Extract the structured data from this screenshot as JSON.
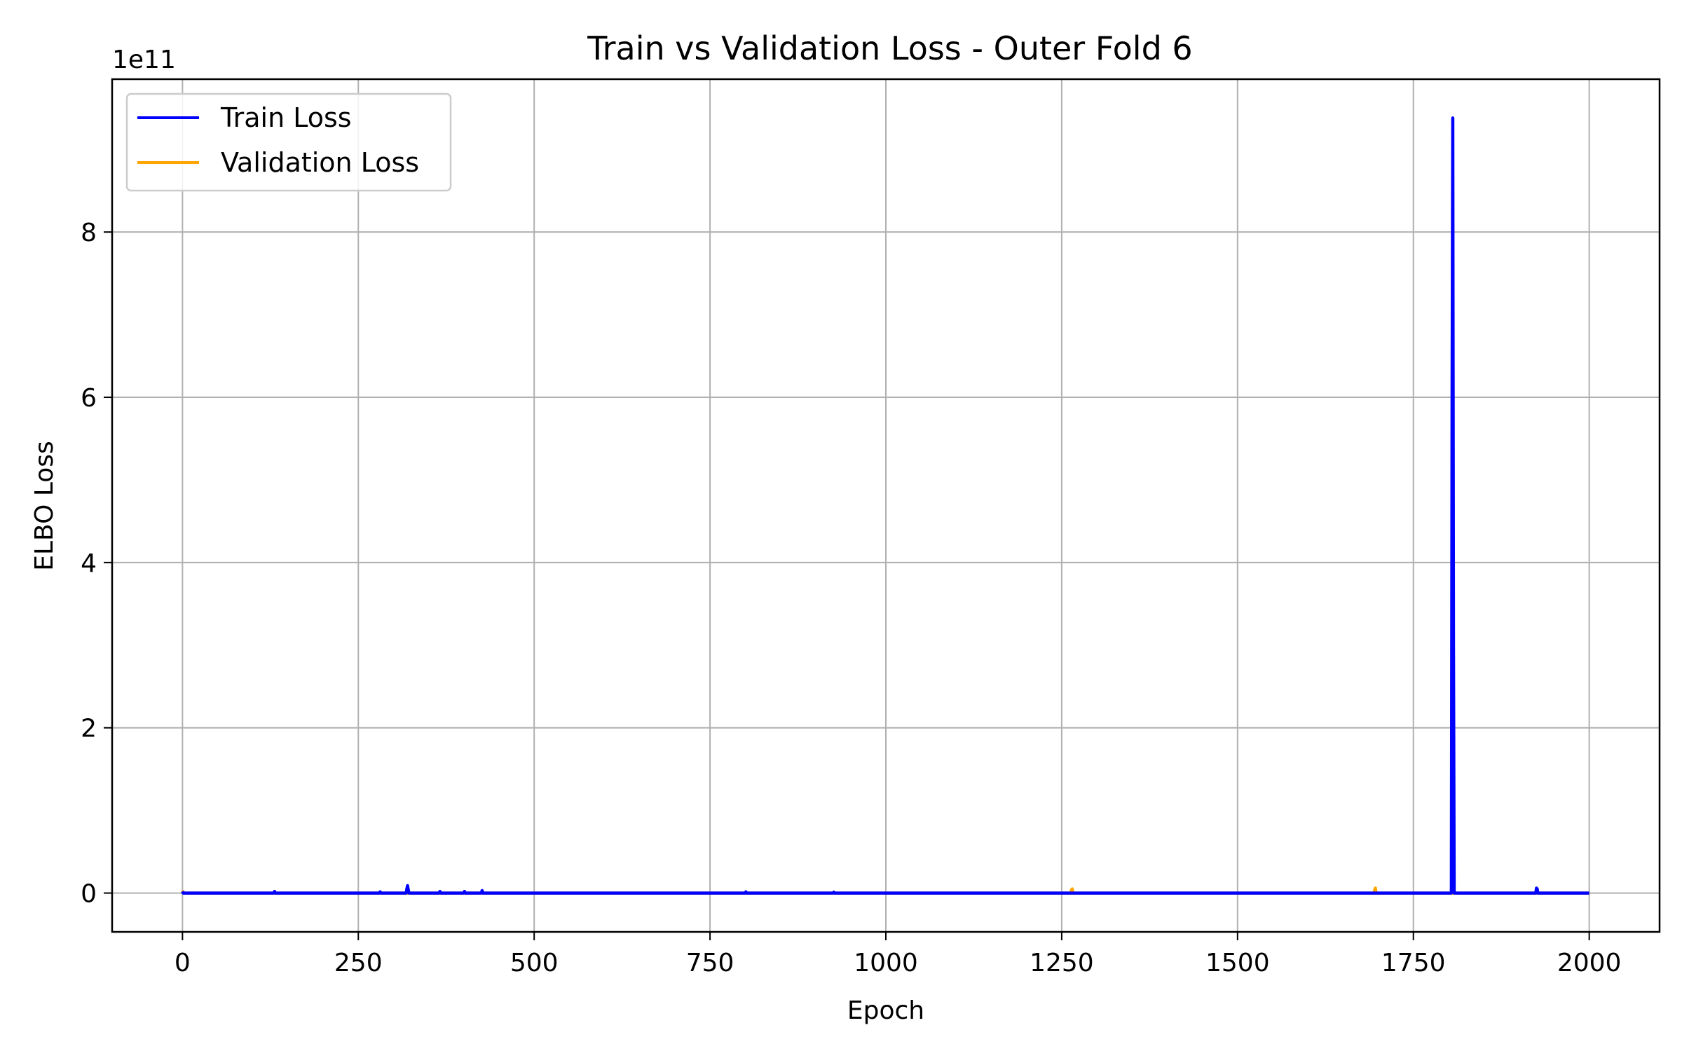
{
  "chart_data": {
    "type": "line",
    "title": "Train vs Validation Loss - Outer Fold 6",
    "xlabel": "Epoch",
    "ylabel": "ELBO Loss",
    "y_offset_label": "1e11",
    "y_scale_factor": 100000000000,
    "xlim": [
      -100,
      2100
    ],
    "ylim": [
      -47000000000.0,
      985000000000.0
    ],
    "x_ticks": [
      0,
      250,
      500,
      750,
      1000,
      1250,
      1500,
      1750,
      2000
    ],
    "y_ticks": [
      0,
      200000000000,
      400000000000,
      600000000000,
      800000000000
    ],
    "y_tick_labels": [
      "0",
      "2",
      "4",
      "6",
      "8"
    ],
    "grid": true,
    "legend_position": "top-left",
    "series": [
      {
        "name": "Train Loss",
        "color": "#0000ff",
        "x": [
          0,
          1,
          130,
          131,
          132,
          280,
          281,
          282,
          318,
          319,
          320,
          321,
          322,
          365,
          366,
          367,
          400,
          401,
          402,
          425,
          426,
          427,
          800,
          801,
          802,
          925,
          926,
          927,
          1804,
          1805,
          1806,
          1807,
          1808,
          1924,
          1925,
          1926,
          1927,
          2000
        ],
        "y": [
          2000000000,
          0,
          0,
          2000000000,
          0,
          0,
          1500000000,
          0,
          0,
          5000000000,
          9000000000,
          4000000000,
          0,
          0,
          2000000000,
          0,
          0,
          2000000000,
          0,
          0,
          3000000000,
          0,
          0,
          1500000000,
          0,
          0,
          1000000000,
          0,
          0,
          600000000000,
          938000000000,
          300000000000,
          0,
          0,
          6000000000,
          5000000000,
          0,
          0
        ]
      },
      {
        "name": "Validation Loss",
        "color": "#ffa500",
        "x": [
          0,
          1,
          2,
          1263,
          1264,
          1265,
          1266,
          1694,
          1695,
          1696,
          1697,
          2000
        ],
        "y": [
          3000000000,
          1000000000,
          0,
          0,
          4000000000,
          5000000000,
          0,
          0,
          4000000000,
          6000000000,
          0,
          0
        ]
      }
    ]
  }
}
